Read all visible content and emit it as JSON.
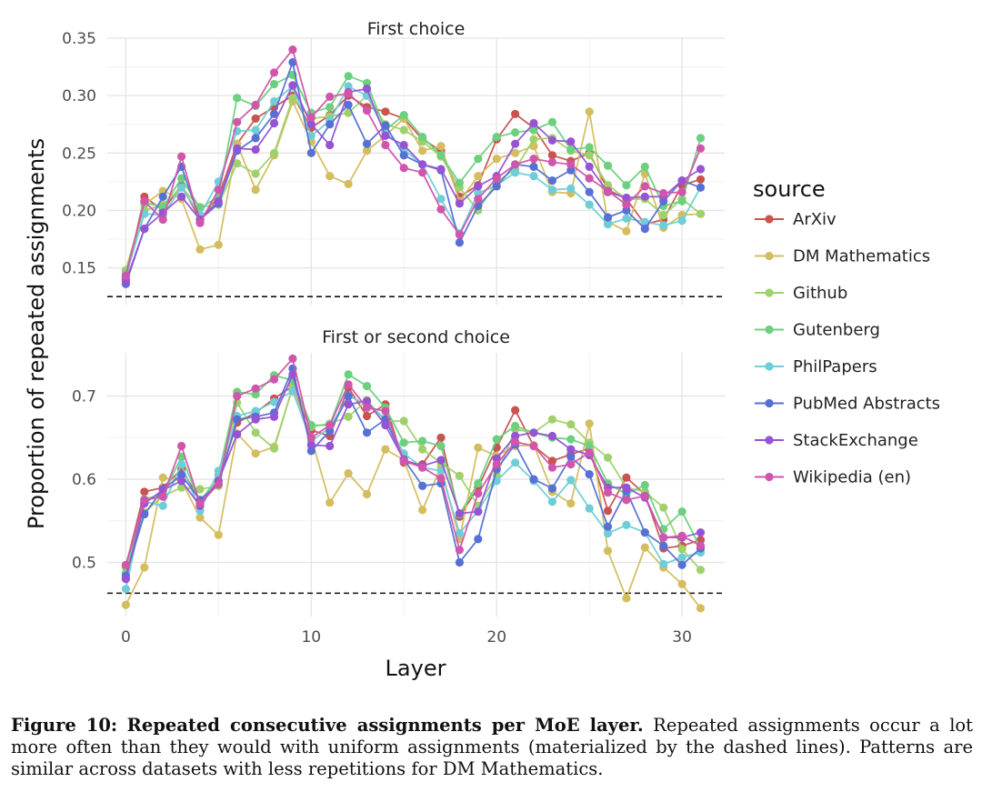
{
  "chart_data": {
    "type": "line",
    "ylabel": "Proportion of repeated assignments",
    "xlabel": "Layer",
    "legend_title": "source",
    "legend_position": "right",
    "grid": true,
    "xlim": [
      -1,
      32.3
    ],
    "xticks": [
      0,
      10,
      20,
      30
    ],
    "x": [
      0,
      1,
      2,
      3,
      4,
      5,
      6,
      7,
      8,
      9,
      10,
      11,
      12,
      13,
      14,
      15,
      16,
      17,
      18,
      19,
      20,
      21,
      22,
      23,
      24,
      25,
      26,
      27,
      28,
      29,
      30,
      31
    ],
    "sources": [
      {
        "name": "ArXiv",
        "color": "#c9544f"
      },
      {
        "name": "DM Mathematics",
        "color": "#d4bd5e"
      },
      {
        "name": "Github",
        "color": "#9fd16a"
      },
      {
        "name": "Gutenberg",
        "color": "#6cd07f"
      },
      {
        "name": "PhilPapers",
        "color": "#6fcdd8"
      },
      {
        "name": "PubMed Abstracts",
        "color": "#5670d4"
      },
      {
        "name": "StackExchange",
        "color": "#9654d4"
      },
      {
        "name": "Wikipedia (en)",
        "color": "#d155ac"
      }
    ],
    "panels": [
      {
        "title": "First choice",
        "ylim": [
          0.118,
          0.35
        ],
        "yticks": [
          0.15,
          0.2,
          0.25,
          0.3,
          0.35
        ],
        "yticklabels": [
          "0.15",
          "0.20",
          "0.25",
          "0.30",
          "0.35"
        ],
        "baseline": 0.125,
        "series": [
          {
            "name": "ArXiv",
            "values": [
              0.14,
              0.212,
              0.2,
              0.222,
              0.192,
              0.212,
              0.258,
              0.28,
              0.29,
              0.3,
              0.272,
              0.283,
              0.3,
              0.29,
              0.286,
              0.28,
              0.262,
              0.252,
              0.212,
              0.222,
              0.262,
              0.284,
              0.272,
              0.248,
              0.243,
              0.25,
              0.218,
              0.21,
              0.188,
              0.192,
              0.222,
              0.227
            ]
          },
          {
            "name": "DM Mathematics",
            "values": [
              0.148,
              0.205,
              0.217,
              0.21,
              0.166,
              0.17,
              0.258,
              0.218,
              0.248,
              0.295,
              0.26,
              0.23,
              0.223,
              0.252,
              0.265,
              0.28,
              0.252,
              0.256,
              0.208,
              0.23,
              0.245,
              0.25,
              0.256,
              0.216,
              0.215,
              0.286,
              0.19,
              0.182,
              0.232,
              0.185,
              0.196,
              0.197
            ]
          },
          {
            "name": "Github",
            "values": [
              0.148,
              0.2,
              0.205,
              0.22,
              0.203,
              0.205,
              0.241,
              0.232,
              0.25,
              0.298,
              0.28,
              0.282,
              0.285,
              0.3,
              0.275,
              0.27,
              0.26,
              0.247,
              0.22,
              0.2,
              0.225,
              0.236,
              0.262,
              0.263,
              0.252,
              0.248,
              0.222,
              0.21,
              0.21,
              0.196,
              0.21,
              0.197
            ]
          },
          {
            "name": "Gutenberg",
            "values": [
              0.145,
              0.207,
              0.203,
              0.228,
              0.202,
              0.212,
              0.298,
              0.291,
              0.31,
              0.318,
              0.285,
              0.29,
              0.317,
              0.311,
              0.27,
              0.283,
              0.264,
              0.248,
              0.224,
              0.245,
              0.264,
              0.268,
              0.27,
              0.277,
              0.253,
              0.255,
              0.239,
              0.222,
              0.238,
              0.204,
              0.208,
              0.263
            ]
          },
          {
            "name": "PhilPapers",
            "values": [
              0.143,
              0.197,
              0.196,
              0.22,
              0.196,
              0.225,
              0.269,
              0.27,
              0.295,
              0.308,
              0.265,
              0.278,
              0.308,
              0.3,
              0.268,
              0.253,
              0.24,
              0.21,
              0.18,
              0.215,
              0.222,
              0.233,
              0.23,
              0.218,
              0.219,
              0.205,
              0.188,
              0.193,
              0.19,
              0.187,
              0.191,
              0.22
            ]
          },
          {
            "name": "PubMed Abstracts",
            "values": [
              0.136,
              0.184,
              0.212,
              0.238,
              0.192,
              0.206,
              0.252,
              0.263,
              0.284,
              0.329,
              0.25,
              0.275,
              0.292,
              0.258,
              0.274,
              0.248,
              0.24,
              0.235,
              0.172,
              0.204,
              0.221,
              0.24,
              0.238,
              0.226,
              0.235,
              0.216,
              0.194,
              0.2,
              0.184,
              0.208,
              0.226,
              0.22
            ]
          },
          {
            "name": "StackExchange",
            "values": [
              0.138,
              0.184,
              0.198,
              0.212,
              0.192,
              0.208,
              0.254,
              0.253,
              0.276,
              0.309,
              0.275,
              0.257,
              0.303,
              0.306,
              0.265,
              0.257,
              0.24,
              0.236,
              0.206,
              0.221,
              0.23,
              0.258,
              0.276,
              0.261,
              0.26,
              0.238,
              0.216,
              0.211,
              0.212,
              0.212,
              0.226,
              0.236
            ]
          },
          {
            "name": "Wikipedia (en)",
            "values": [
              0.143,
              0.208,
              0.192,
              0.247,
              0.189,
              0.218,
              0.277,
              0.292,
              0.32,
              0.34,
              0.281,
              0.299,
              0.302,
              0.287,
              0.257,
              0.237,
              0.233,
              0.201,
              0.179,
              0.21,
              0.228,
              0.24,
              0.245,
              0.242,
              0.24,
              0.228,
              0.217,
              0.205,
              0.221,
              0.215,
              0.216,
              0.254
            ]
          }
        ]
      },
      {
        "title": "First or second choice",
        "ylim": [
          0.435,
          0.752
        ],
        "yticks": [
          0.5,
          0.6,
          0.7
        ],
        "yticklabels": [
          "0.5",
          "0.6",
          "0.7"
        ],
        "baseline": 0.463,
        "series": [
          {
            "name": "ArXiv",
            "values": [
              0.495,
              0.585,
              0.59,
              0.612,
              0.575,
              0.598,
              0.668,
              0.68,
              0.697,
              0.712,
              0.659,
              0.652,
              0.71,
              0.676,
              0.69,
              0.62,
              0.618,
              0.65,
              0.555,
              0.59,
              0.638,
              0.683,
              0.64,
              0.622,
              0.63,
              0.637,
              0.562,
              0.602,
              0.582,
              0.517,
              0.52,
              0.527
            ]
          },
          {
            "name": "DM Mathematics",
            "values": [
              0.449,
              0.494,
              0.602,
              0.598,
              0.554,
              0.533,
              0.655,
              0.631,
              0.639,
              0.71,
              0.65,
              0.572,
              0.607,
              0.582,
              0.636,
              0.623,
              0.563,
              0.615,
              0.528,
              0.638,
              0.628,
              0.64,
              0.641,
              0.585,
              0.571,
              0.667,
              0.514,
              0.457,
              0.518,
              0.494,
              0.474,
              0.445
            ]
          },
          {
            "name": "Github",
            "values": [
              0.496,
              0.56,
              0.58,
              0.59,
              0.588,
              0.592,
              0.692,
              0.656,
              0.637,
              0.711,
              0.663,
              0.667,
              0.675,
              0.695,
              0.67,
              0.67,
              0.636,
              0.62,
              0.604,
              0.568,
              0.605,
              0.66,
              0.656,
              0.672,
              0.666,
              0.644,
              0.626,
              0.59,
              0.585,
              0.566,
              0.516,
              0.491
            ]
          },
          {
            "name": "Gutenberg",
            "values": [
              0.487,
              0.576,
              0.582,
              0.627,
              0.572,
              0.605,
              0.705,
              0.702,
              0.725,
              0.719,
              0.665,
              0.665,
              0.726,
              0.712,
              0.686,
              0.644,
              0.646,
              0.64,
              0.558,
              0.595,
              0.648,
              0.664,
              0.656,
              0.65,
              0.648,
              0.64,
              0.595,
              0.582,
              0.593,
              0.54,
              0.561,
              0.517
            ]
          },
          {
            "name": "PhilPapers",
            "values": [
              0.468,
              0.573,
              0.568,
              0.618,
              0.562,
              0.61,
              0.676,
              0.682,
              0.693,
              0.706,
              0.646,
              0.662,
              0.7,
              0.69,
              0.673,
              0.631,
              0.614,
              0.61,
              0.535,
              0.562,
              0.598,
              0.62,
              0.598,
              0.573,
              0.599,
              0.565,
              0.535,
              0.545,
              0.536,
              0.498,
              0.506,
              0.512
            ]
          },
          {
            "name": "PubMed Abstracts",
            "values": [
              0.484,
              0.558,
              0.588,
              0.605,
              0.575,
              0.594,
              0.672,
              0.675,
              0.68,
              0.733,
              0.634,
              0.658,
              0.7,
              0.656,
              0.672,
              0.624,
              0.592,
              0.595,
              0.5,
              0.528,
              0.612,
              0.642,
              0.6,
              0.589,
              0.627,
              0.606,
              0.543,
              0.586,
              0.536,
              0.52,
              0.497,
              0.517
            ]
          },
          {
            "name": "StackExchange",
            "values": [
              0.48,
              0.571,
              0.587,
              0.598,
              0.568,
              0.598,
              0.654,
              0.672,
              0.675,
              0.726,
              0.641,
              0.64,
              0.69,
              0.694,
              0.665,
              0.623,
              0.616,
              0.623,
              0.559,
              0.561,
              0.625,
              0.652,
              0.656,
              0.652,
              0.636,
              0.629,
              0.59,
              0.59,
              0.578,
              0.53,
              0.53,
              0.536
            ]
          },
          {
            "name": "Wikipedia (en)",
            "values": [
              0.497,
              0.575,
              0.579,
              0.64,
              0.571,
              0.594,
              0.7,
              0.709,
              0.72,
              0.745,
              0.65,
              0.665,
              0.714,
              0.686,
              0.682,
              0.622,
              0.614,
              0.601,
              0.515,
              0.583,
              0.618,
              0.645,
              0.64,
              0.614,
              0.618,
              0.632,
              0.584,
              0.575,
              0.58,
              0.53,
              0.532,
              0.52
            ]
          }
        ]
      }
    ]
  },
  "caption": {
    "label": "Figure 10:",
    "bold": "Repeated consecutive assignments per MoE layer.",
    "text": "Repeated assignments occur a lot more often than they would with uniform assignments (materialized by the dashed lines). Patterns are similar across datasets with less repetitions for DM Mathematics."
  }
}
